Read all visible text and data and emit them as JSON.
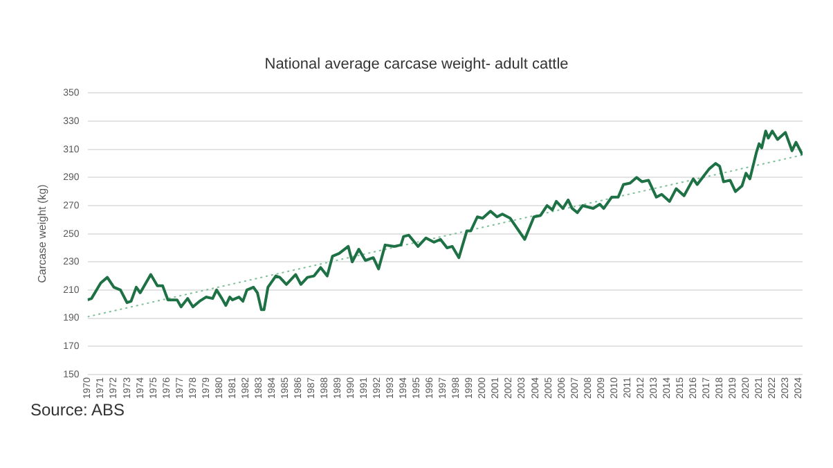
{
  "chart_data": {
    "type": "line",
    "title": "National average carcase weight- adult cattle",
    "ylabel": "Carcase weight (kg)",
    "xlim": [
      1970,
      2024.3
    ],
    "xticks": [
      1970,
      1971,
      1972,
      1973,
      1974,
      1975,
      1976,
      1977,
      1978,
      1979,
      1980,
      1981,
      1982,
      1983,
      1984,
      1985,
      1986,
      1987,
      1988,
      1989,
      1990,
      1991,
      1992,
      1993,
      1994,
      1995,
      1996,
      1997,
      1998,
      1999,
      2000,
      2001,
      2002,
      2003,
      2004,
      2005,
      2006,
      2007,
      2008,
      2009,
      2010,
      2011,
      2012,
      2013,
      2014,
      2015,
      2016,
      2017,
      2018,
      2019,
      2020,
      2021,
      2022,
      2023,
      2024
    ],
    "ylim": [
      150,
      350
    ],
    "yticks": [
      150,
      170,
      190,
      210,
      230,
      250,
      270,
      290,
      310,
      330,
      350
    ],
    "grid": "y",
    "legend": false,
    "marker": "none",
    "annotations": [
      "Source: ABS"
    ],
    "series": [
      {
        "color": "#1e7145",
        "line_style": "solid",
        "x": [
          1970,
          1970.3,
          1971,
          1971.5,
          1972,
          1972.5,
          1973,
          1973.3,
          1973.7,
          1974,
          1974.8,
          1975.3,
          1975.7,
          1976.1,
          1976.8,
          1977.1,
          1977.6,
          1978,
          1978.5,
          1979,
          1979.5,
          1979.8,
          1980.2,
          1980.5,
          1980.8,
          1981,
          1981.5,
          1981.8,
          1982.1,
          1982.6,
          1982.9,
          1983.2,
          1983.4,
          1983.7,
          1984.3,
          1984.6,
          1985.1,
          1985.8,
          1986.2,
          1986.7,
          1987.2,
          1987.7,
          1988.2,
          1988.6,
          1989.1,
          1989.8,
          1990.1,
          1990.6,
          1991.1,
          1991.7,
          1992.1,
          1992.6,
          1993.3,
          1993.8,
          1994,
          1994.4,
          1995.1,
          1995.7,
          1996.3,
          1996.8,
          1997.3,
          1997.7,
          1998.2,
          1998.8,
          1999.1,
          1999.6,
          2000,
          2000.6,
          2001.1,
          2001.5,
          2002.1,
          2003.2,
          2003.9,
          2004.4,
          2004.9,
          2005.3,
          2005.6,
          2006.1,
          2006.5,
          2006.8,
          2007.2,
          2007.6,
          2008.4,
          2008.9,
          2009.2,
          2009.8,
          2010.3,
          2010.7,
          2011.2,
          2011.7,
          2012.1,
          2012.6,
          2013.2,
          2013.6,
          2014.2,
          2014.7,
          2015.3,
          2016,
          2016.3,
          2017.2,
          2017.7,
          2018,
          2018.3,
          2018.8,
          2019.2,
          2019.7,
          2020,
          2020.3,
          2020.8,
          2021,
          2021.2,
          2021.5,
          2021.7,
          2022,
          2022.4,
          2023,
          2023.5,
          2023.8,
          2024.3
        ],
        "values": [
          203,
          204,
          215,
          219,
          212,
          210,
          201,
          202,
          212,
          208,
          221,
          213,
          213,
          203,
          203,
          198,
          204,
          198,
          202,
          205,
          204,
          210,
          204,
          199,
          205,
          203,
          205,
          202,
          210,
          212,
          208,
          196,
          196,
          212,
          220,
          219,
          214,
          221,
          214,
          219,
          220,
          226,
          220,
          234,
          236,
          241,
          230,
          239,
          231,
          233,
          225,
          242,
          241,
          242,
          248,
          249,
          241,
          247,
          244,
          246,
          240,
          241,
          233,
          252,
          252,
          262,
          261,
          266,
          262,
          264,
          261,
          246,
          262,
          263,
          270,
          267,
          273,
          268,
          274,
          268,
          265,
          270,
          268,
          271,
          268,
          276,
          276,
          285,
          286,
          290,
          287,
          288,
          276,
          278,
          273,
          282,
          277,
          289,
          285,
          296,
          300,
          298,
          287,
          288,
          280,
          284,
          293,
          289,
          308,
          314,
          311,
          323,
          318,
          323,
          317,
          322,
          309,
          315,
          306
        ]
      },
      {
        "color": "#7fbf9a",
        "line_style": "dotted",
        "x": [
          1970,
          2024.3
        ],
        "values": [
          191,
          306
        ]
      }
    ]
  }
}
